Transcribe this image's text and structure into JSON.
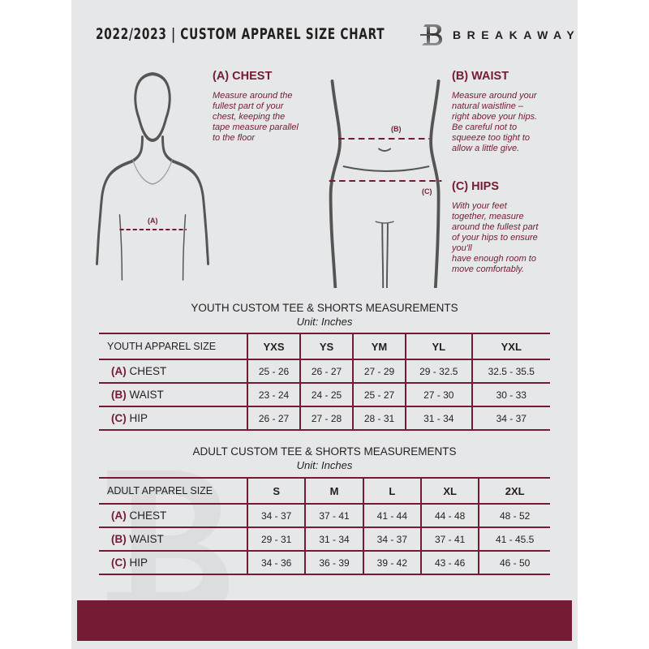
{
  "header": {
    "title": "2022/2023  |  CUSTOM APPAREL SIZE CHART",
    "brand": "BREAKAWAY",
    "logo_letter": "B"
  },
  "colors": {
    "accent": "#741c33",
    "background": "#e6e7e8",
    "text": "#231f20"
  },
  "chest": {
    "heading": "(A) CHEST",
    "marker": "(A)",
    "lines": [
      "Measure around the",
      "fullest part of your",
      "chest, keeping the",
      "tape measure parallel",
      "to the floor"
    ]
  },
  "waist": {
    "heading": "(B) WAIST",
    "marker": "(B)",
    "lines": [
      "Measure around your",
      "natural waistline –",
      "right above your hips.",
      "Be careful not to",
      "squeeze too tight to",
      "allow a little give."
    ]
  },
  "hips": {
    "heading": "(C) HIPS",
    "marker": "(C)",
    "lines": [
      "With your feet",
      "together, measure",
      "around the fullest part",
      "of your hips to ensure",
      "you'll",
      "have enough room to",
      "move comfortably."
    ]
  },
  "youth": {
    "title": "YOUTH CUSTOM TEE & SHORTS MEASUREMENTS",
    "unit": "Unit: Inches",
    "header": "YOUTH APPAREL SIZE",
    "sizes": [
      "YXS",
      "YS",
      "YM",
      "YL",
      "YXL"
    ],
    "rows": [
      {
        "letter": "(A)",
        "label": "CHEST",
        "values": [
          "25 - 26",
          "26 - 27",
          "27 - 29",
          "29 - 32.5",
          "32.5 - 35.5"
        ]
      },
      {
        "letter": "(B)",
        "label": "WAIST",
        "values": [
          "23 - 24",
          "24 - 25",
          "25 - 27",
          "27 - 30",
          "30 - 33"
        ]
      },
      {
        "letter": "(C)",
        "label": "HIP",
        "values": [
          "26 - 27",
          "27 - 28",
          "28 - 31",
          "31 - 34",
          "34 - 37"
        ]
      }
    ]
  },
  "adult": {
    "title": "ADULT CUSTOM TEE & SHORTS MEASUREMENTS",
    "unit": "Unit: Inches",
    "header": "ADULT APPAREL SIZE",
    "sizes": [
      "S",
      "M",
      "L",
      "XL",
      "2XL"
    ],
    "rows": [
      {
        "letter": "(A)",
        "label": "CHEST",
        "values": [
          "34 - 37",
          "37 - 41",
          "41 - 44",
          "44 - 48",
          "48 - 52"
        ]
      },
      {
        "letter": "(B)",
        "label": "WAIST",
        "values": [
          "29 - 31",
          "31 - 34",
          "34 - 37",
          "37 - 41",
          "41 - 45.5"
        ]
      },
      {
        "letter": "(C)",
        "label": "HIP",
        "values": [
          "34 - 36",
          "36 - 39",
          "39 - 42",
          "43 - 46",
          "46 - 50"
        ]
      }
    ]
  }
}
